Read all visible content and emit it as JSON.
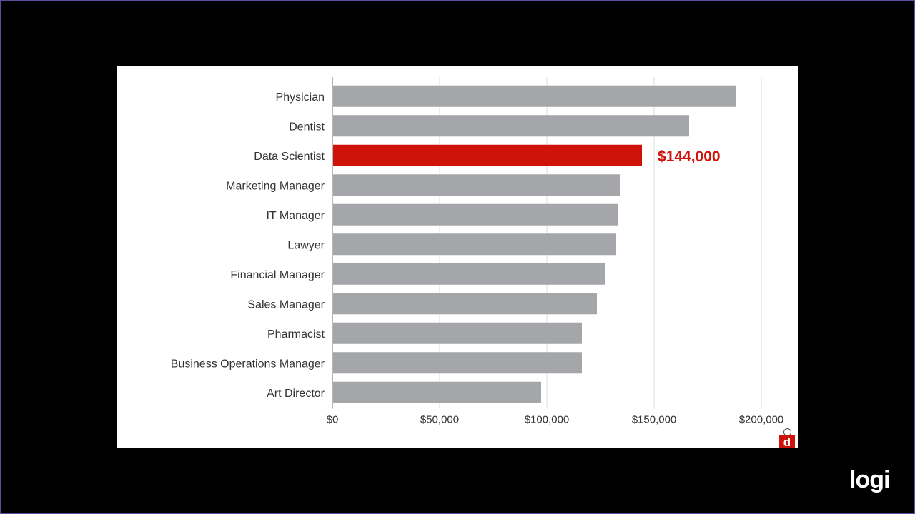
{
  "chart_data": {
    "type": "bar",
    "orientation": "horizontal",
    "categories": [
      "Physician",
      "Dentist",
      "Data Scientist",
      "Marketing Manager",
      "IT Manager",
      "Lawyer",
      "Financial Manager",
      "Sales Manager",
      "Pharmacist",
      "Business Operations Manager",
      "Art Director"
    ],
    "values": [
      188000,
      166000,
      144000,
      134000,
      133000,
      132000,
      127000,
      123000,
      116000,
      116000,
      97000
    ],
    "highlight_index": 2,
    "highlight_label": "$144,000",
    "xlim": [
      0,
      200000
    ],
    "xticks": [
      0,
      50000,
      100000,
      150000,
      200000
    ],
    "xtick_labels": [
      "$0",
      "$50,000",
      "$100,000",
      "$150,000",
      "$200,000"
    ],
    "grid": "vertical",
    "title": "",
    "xlabel": "",
    "ylabel": ""
  },
  "colors": {
    "bar": "#a4a6a9",
    "highlight": "#d0130a",
    "grid": "#dcdcdc",
    "axis": "#888888",
    "background": "#ffffff",
    "frame": "#000000"
  },
  "corner_badge": {
    "letter": "d"
  },
  "watermark": {
    "text": "logi"
  }
}
